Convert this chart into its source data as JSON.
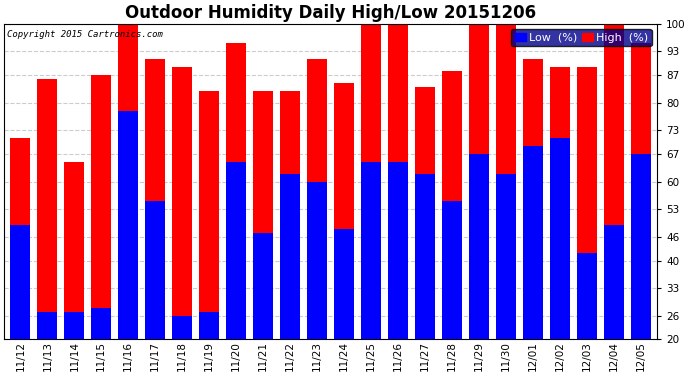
{
  "title": "Outdoor Humidity Daily High/Low 20151206",
  "copyright": "Copyright 2015 Cartronics.com",
  "dates": [
    "11/12",
    "11/13",
    "11/14",
    "11/15",
    "11/16",
    "11/17",
    "11/18",
    "11/19",
    "11/20",
    "11/21",
    "11/22",
    "11/23",
    "11/24",
    "11/25",
    "11/26",
    "11/27",
    "11/28",
    "11/29",
    "11/30",
    "12/01",
    "12/02",
    "12/03",
    "12/04",
    "12/05"
  ],
  "high": [
    71,
    86,
    65,
    87,
    100,
    91,
    89,
    83,
    95,
    83,
    83,
    91,
    85,
    100,
    100,
    84,
    88,
    100,
    100,
    91,
    89,
    89,
    100,
    95
  ],
  "low": [
    49,
    27,
    27,
    28,
    78,
    55,
    26,
    27,
    65,
    47,
    62,
    60,
    48,
    65,
    65,
    62,
    55,
    67,
    62,
    69,
    71,
    42,
    49,
    67
  ],
  "ylim_min": 20,
  "ylim_max": 100,
  "yticks": [
    20,
    26,
    33,
    40,
    46,
    53,
    60,
    67,
    73,
    80,
    87,
    93,
    100
  ],
  "high_color": "#ff0000",
  "low_color": "#0000ff",
  "bg_color": "#ffffff",
  "grid_color": "#cccccc",
  "title_fontsize": 12,
  "tick_fontsize": 7.5,
  "legend_fontsize": 8
}
